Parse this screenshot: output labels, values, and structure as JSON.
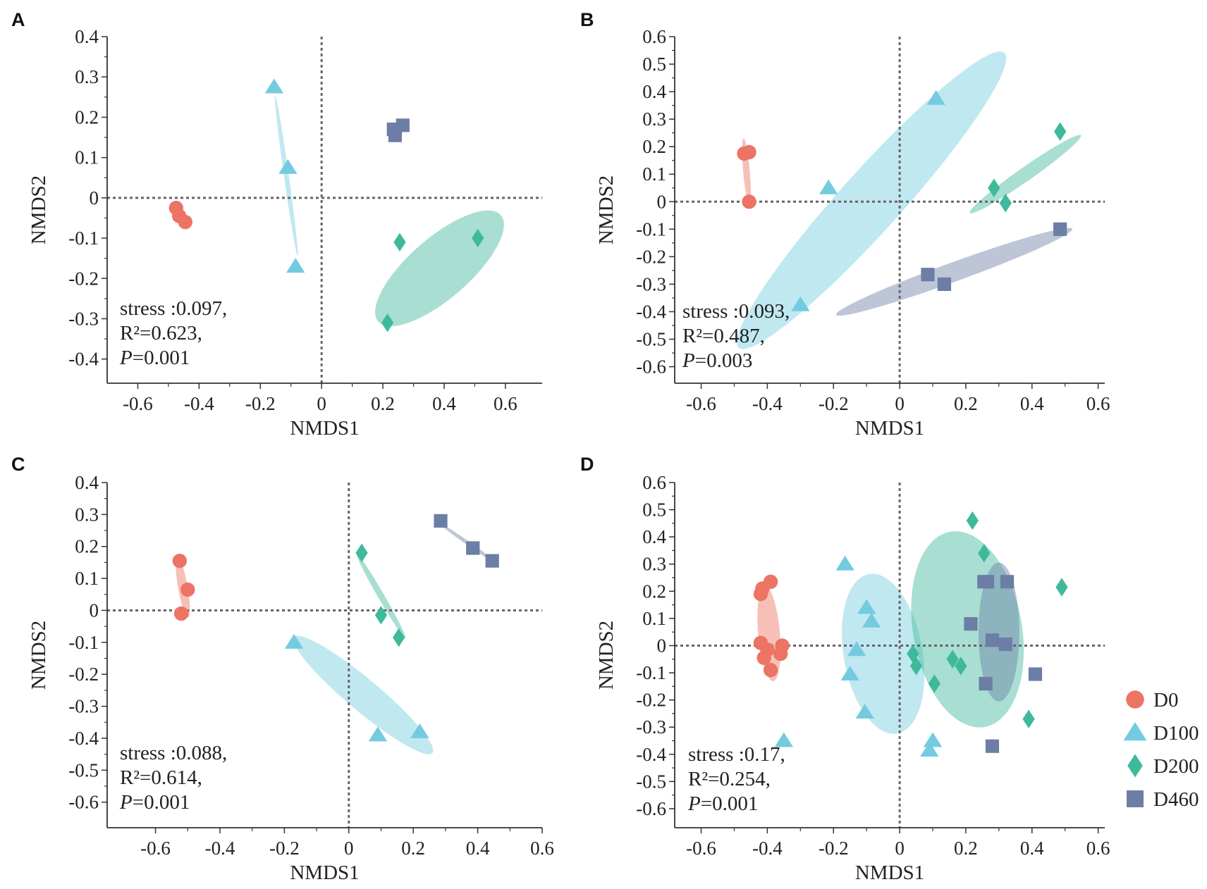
{
  "colors": {
    "D0": "#ec7464",
    "D100": "#74cbe0",
    "D200": "#3fb99c",
    "D460": "#6c7ea6",
    "axis": "#333333",
    "zero_line": "#666666"
  },
  "legend": [
    {
      "group": "D0",
      "label": "D0",
      "marker": "circle"
    },
    {
      "group": "D100",
      "label": "D100",
      "marker": "triangle"
    },
    {
      "group": "D200",
      "label": "D200",
      "marker": "diamond"
    },
    {
      "group": "D460",
      "label": "D460",
      "marker": "square"
    }
  ],
  "chart_data": [
    {
      "panel": "A",
      "type": "scatter",
      "xlabel": "NMDS1",
      "ylabel": "NMDS2",
      "xlim": [
        -0.7,
        0.72
      ],
      "ylim": [
        -0.46,
        0.4
      ],
      "xticks": [
        -0.6,
        -0.4,
        -0.2,
        0,
        0.2,
        0.4,
        0.6
      ],
      "yticks": [
        0.4,
        0.3,
        0.2,
        0.1,
        0,
        -0.1,
        -0.2,
        -0.3,
        -0.4
      ],
      "stats": {
        "stress": "stress :0.097,",
        "r2": "R²=0.623,",
        "p_letter": "P",
        "p_rest": "=0.001"
      },
      "series": [
        {
          "group": "D0",
          "points": [
            [
              -0.475,
              -0.025
            ],
            [
              -0.465,
              -0.045
            ],
            [
              -0.445,
              -0.06
            ]
          ]
        },
        {
          "group": "D100",
          "points": [
            [
              -0.155,
              0.275
            ],
            [
              -0.11,
              0.075
            ],
            [
              -0.085,
              -0.17
            ]
          ]
        },
        {
          "group": "D200",
          "points": [
            [
              0.255,
              -0.11
            ],
            [
              0.51,
              -0.1
            ],
            [
              0.215,
              -0.31
            ]
          ]
        },
        {
          "group": "D460",
          "points": [
            [
              0.235,
              0.17
            ],
            [
              0.265,
              0.18
            ],
            [
              0.24,
              0.155
            ]
          ]
        }
      ],
      "ellipses": [
        {
          "group": "D0",
          "center": [
            -0.46,
            -0.043
          ],
          "rx": 0.025,
          "ry": 0.008,
          "angle": -50
        },
        {
          "group": "D100",
          "center": [
            -0.115,
            0.055
          ],
          "rx": 0.265,
          "ry": 0.006,
          "angle": -82
        },
        {
          "group": "D200",
          "center": [
            0.385,
            -0.175
          ],
          "rx": 0.265,
          "ry": 0.075,
          "angle": 41
        }
      ]
    },
    {
      "panel": "B",
      "type": "scatter",
      "xlabel": "NMDS1",
      "ylabel": "NMDS2",
      "xlim": [
        -0.68,
        0.62
      ],
      "ylim": [
        -0.66,
        0.6
      ],
      "xticks": [
        -0.6,
        -0.4,
        -0.2,
        0,
        0.2,
        0.4,
        0.6
      ],
      "yticks": [
        0.6,
        0.5,
        0.4,
        0.3,
        0.2,
        0.1,
        0,
        -0.1,
        -0.2,
        -0.3,
        -0.4,
        -0.5,
        -0.6
      ],
      "stats": {
        "stress": "stress :0.093,",
        "r2": "R²=0.487,",
        "p_letter": "P",
        "p_rest": "=0.003"
      },
      "series": [
        {
          "group": "D0",
          "points": [
            [
              -0.47,
              0.175
            ],
            [
              -0.455,
              0.18
            ],
            [
              -0.455,
              0.0
            ]
          ]
        },
        {
          "group": "D100",
          "points": [
            [
              0.11,
              0.375
            ],
            [
              -0.215,
              0.05
            ],
            [
              -0.3,
              -0.375
            ]
          ]
        },
        {
          "group": "D200",
          "points": [
            [
              0.485,
              0.255
            ],
            [
              0.285,
              0.05
            ],
            [
              0.32,
              -0.005
            ]
          ]
        },
        {
          "group": "D460",
          "points": [
            [
              0.485,
              -0.1
            ],
            [
              0.085,
              -0.265
            ],
            [
              0.135,
              -0.3
            ]
          ]
        }
      ],
      "ellipses": [
        {
          "group": "D0",
          "center": [
            -0.463,
            0.11
          ],
          "rx": 0.1,
          "ry": 0.012,
          "angle": -85
        },
        {
          "group": "D100",
          "center": [
            -0.085,
            0.005
          ],
          "rx": 0.6,
          "ry": 0.11,
          "angle": 48
        },
        {
          "group": "D200",
          "center": [
            0.38,
            0.1
          ],
          "rx": 0.205,
          "ry": 0.025,
          "angle": 35
        },
        {
          "group": "D460",
          "center": [
            0.165,
            -0.255
          ],
          "rx": 0.38,
          "ry": 0.035,
          "angle": 20
        }
      ]
    },
    {
      "panel": "C",
      "type": "scatter",
      "xlabel": "NMDS1",
      "ylabel": "NMDS2",
      "xlim": [
        -0.75,
        0.6
      ],
      "ylim": [
        -0.68,
        0.4
      ],
      "xticks": [
        -0.6,
        -0.4,
        -0.2,
        0,
        0.2,
        0.4,
        0.6
      ],
      "yticks": [
        0.4,
        0.3,
        0.2,
        0.1,
        0,
        -0.1,
        -0.2,
        -0.3,
        -0.4,
        -0.5,
        -0.6
      ],
      "stats": {
        "stress": "stress :0.088,",
        "r2": "R²=0.614,",
        "p_letter": "P",
        "p_rest": "=0.001"
      },
      "series": [
        {
          "group": "D0",
          "points": [
            [
              -0.525,
              0.155
            ],
            [
              -0.5,
              0.065
            ],
            [
              -0.52,
              -0.01
            ]
          ]
        },
        {
          "group": "D100",
          "points": [
            [
              -0.17,
              -0.1
            ],
            [
              0.09,
              -0.39
            ],
            [
              0.22,
              -0.38
            ]
          ]
        },
        {
          "group": "D200",
          "points": [
            [
              0.04,
              0.18
            ],
            [
              0.1,
              -0.015
            ],
            [
              0.155,
              -0.085
            ]
          ]
        },
        {
          "group": "D460",
          "points": [
            [
              0.285,
              0.28
            ],
            [
              0.385,
              0.195
            ],
            [
              0.445,
              0.155
            ]
          ]
        }
      ],
      "ellipses": [
        {
          "group": "D0",
          "center": [
            -0.515,
            0.072
          ],
          "rx": 0.095,
          "ry": 0.015,
          "angle": -80
        },
        {
          "group": "D100",
          "center": [
            0.045,
            -0.265
          ],
          "rx": 0.28,
          "ry": 0.05,
          "angle": -40
        },
        {
          "group": "D200",
          "center": [
            0.1,
            0.045
          ],
          "rx": 0.15,
          "ry": 0.01,
          "angle": -60
        },
        {
          "group": "D460",
          "center": [
            0.37,
            0.21
          ],
          "rx": 0.11,
          "ry": 0.006,
          "angle": -35
        }
      ]
    },
    {
      "panel": "D",
      "type": "scatter",
      "xlabel": "NMDS1",
      "ylabel": "NMDS2",
      "xlim": [
        -0.68,
        0.62
      ],
      "ylim": [
        -0.67,
        0.6
      ],
      "xticks": [
        -0.6,
        -0.4,
        -0.2,
        0,
        0.2,
        0.4,
        0.6
      ],
      "yticks": [
        0.6,
        0.5,
        0.4,
        0.3,
        0.2,
        0.1,
        0,
        -0.1,
        -0.2,
        -0.3,
        -0.4,
        -0.5,
        -0.6
      ],
      "stats": {
        "stress": "stress :0.17,",
        "r2": "R²=0.254,",
        "p_letter": "P",
        "p_rest": "=0.001"
      },
      "series": [
        {
          "group": "D0",
          "points": [
            [
              -0.42,
              0.19
            ],
            [
              -0.415,
              0.21
            ],
            [
              -0.39,
              0.235
            ],
            [
              -0.42,
              0.01
            ],
            [
              -0.4,
              -0.015
            ],
            [
              -0.41,
              -0.045
            ],
            [
              -0.39,
              -0.09
            ],
            [
              -0.36,
              -0.03
            ],
            [
              -0.355,
              0.0
            ]
          ]
        },
        {
          "group": "D100",
          "points": [
            [
              -0.165,
              0.3
            ],
            [
              -0.1,
              0.14
            ],
            [
              -0.085,
              0.09
            ],
            [
              -0.13,
              -0.015
            ],
            [
              -0.15,
              -0.105
            ],
            [
              -0.105,
              -0.245
            ],
            [
              -0.35,
              -0.35
            ],
            [
              0.1,
              -0.35
            ],
            [
              0.09,
              -0.385
            ]
          ]
        },
        {
          "group": "D200",
          "points": [
            [
              0.22,
              0.46
            ],
            [
              0.255,
              0.34
            ],
            [
              0.04,
              -0.03
            ],
            [
              0.05,
              -0.075
            ],
            [
              0.105,
              -0.14
            ],
            [
              0.16,
              -0.05
            ],
            [
              0.185,
              -0.075
            ],
            [
              0.39,
              -0.27
            ],
            [
              0.49,
              0.215
            ]
          ]
        },
        {
          "group": "D460",
          "points": [
            [
              0.255,
              0.235
            ],
            [
              0.265,
              0.235
            ],
            [
              0.325,
              0.235
            ],
            [
              0.215,
              0.08
            ],
            [
              0.28,
              0.02
            ],
            [
              0.32,
              0.005
            ],
            [
              0.26,
              -0.14
            ],
            [
              0.41,
              -0.105
            ],
            [
              0.28,
              -0.37
            ]
          ]
        }
      ],
      "ellipses": [
        {
          "group": "D0",
          "center": [
            -0.395,
            0.045
          ],
          "rx": 0.145,
          "ry": 0.04,
          "angle": -85
        },
        {
          "group": "D100",
          "center": [
            -0.05,
            -0.03
          ],
          "rx": 0.245,
          "ry": 0.145,
          "angle": -80
        },
        {
          "group": "D200",
          "center": [
            0.205,
            0.06
          ],
          "rx": 0.3,
          "ry": 0.2,
          "angle": -80
        },
        {
          "group": "D460",
          "center": [
            0.3,
            0.05
          ],
          "rx": 0.21,
          "ry": 0.075,
          "angle": -90
        }
      ]
    }
  ]
}
